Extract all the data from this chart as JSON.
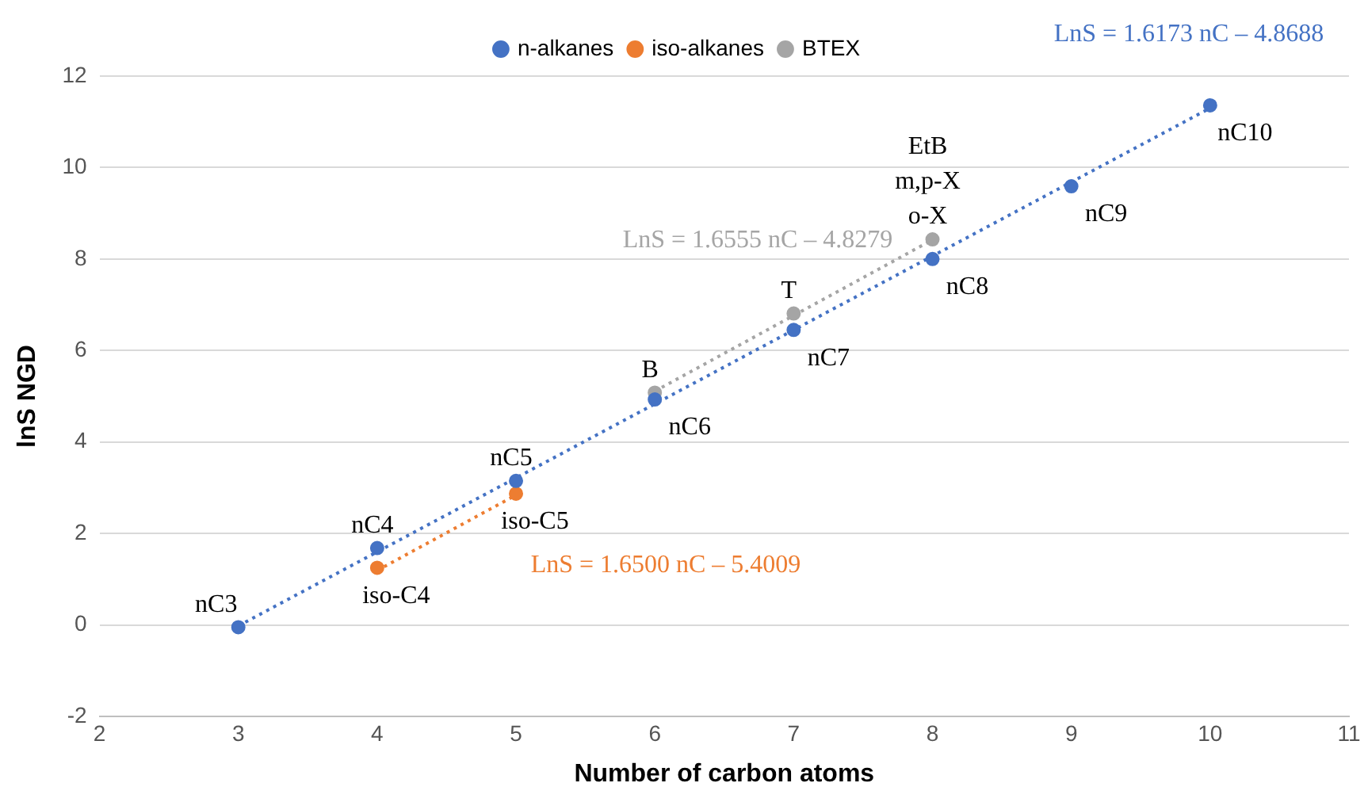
{
  "chart_data": {
    "type": "scatter",
    "xlabel": "Number of carbon atoms",
    "ylabel": "lnS NGD",
    "xlim": [
      2,
      11
    ],
    "xticks": [
      2,
      3,
      4,
      5,
      6,
      7,
      8,
      9,
      10,
      11
    ],
    "ylim": [
      -2,
      12
    ],
    "yticks": [
      -2,
      0,
      2,
      4,
      6,
      8,
      10,
      12
    ],
    "grid": "y",
    "legend": "top",
    "marker": "circle",
    "series": [
      {
        "name": "n-alkanes",
        "color": "#4472c4",
        "x": [
          3,
          4,
          5,
          6,
          7,
          8,
          9,
          10
        ],
        "values": [
          -0.05,
          1.68,
          3.15,
          4.93,
          6.45,
          8.0,
          9.59,
          11.36
        ],
        "value_labels": [
          "nC3",
          "nC4",
          "nC5",
          "nC6",
          "nC7",
          "nC8",
          "nC9",
          "nC10"
        ]
      },
      {
        "name": "iso-alkanes",
        "color": "#ed7d31",
        "x": [
          4,
          5
        ],
        "values": [
          1.25,
          2.87
        ],
        "value_labels": [
          "iso-C4",
          "iso-C5"
        ]
      },
      {
        "name": "BTEX",
        "color": "#a5a5a5",
        "x": [
          6,
          7,
          8
        ],
        "values": [
          5.08,
          6.81,
          8.43
        ],
        "value_labels": [
          "B",
          "T",
          "EtB\nm,p-X\no-X"
        ]
      },
      {
        "type": "line",
        "line_style": "dotted",
        "marker": "none",
        "color": "#4472c4",
        "x": [
          3,
          10
        ],
        "values": [
          -0.02,
          11.3
        ]
      },
      {
        "type": "line",
        "line_style": "dotted",
        "marker": "none",
        "color": "#ed7d31",
        "x": [
          4,
          5
        ],
        "values": [
          1.19,
          2.84
        ]
      },
      {
        "type": "line",
        "line_style": "dotted",
        "marker": "none",
        "color": "#a5a5a5",
        "x": [
          6,
          8
        ],
        "values": [
          5.11,
          8.42
        ]
      }
    ],
    "annotations": [
      "LnS = 1.6173 nC – 4.8688",
      "LnS = 1.6500 nC – 5.4009",
      "LnS = 1.6555 nC – 4.8279"
    ]
  }
}
